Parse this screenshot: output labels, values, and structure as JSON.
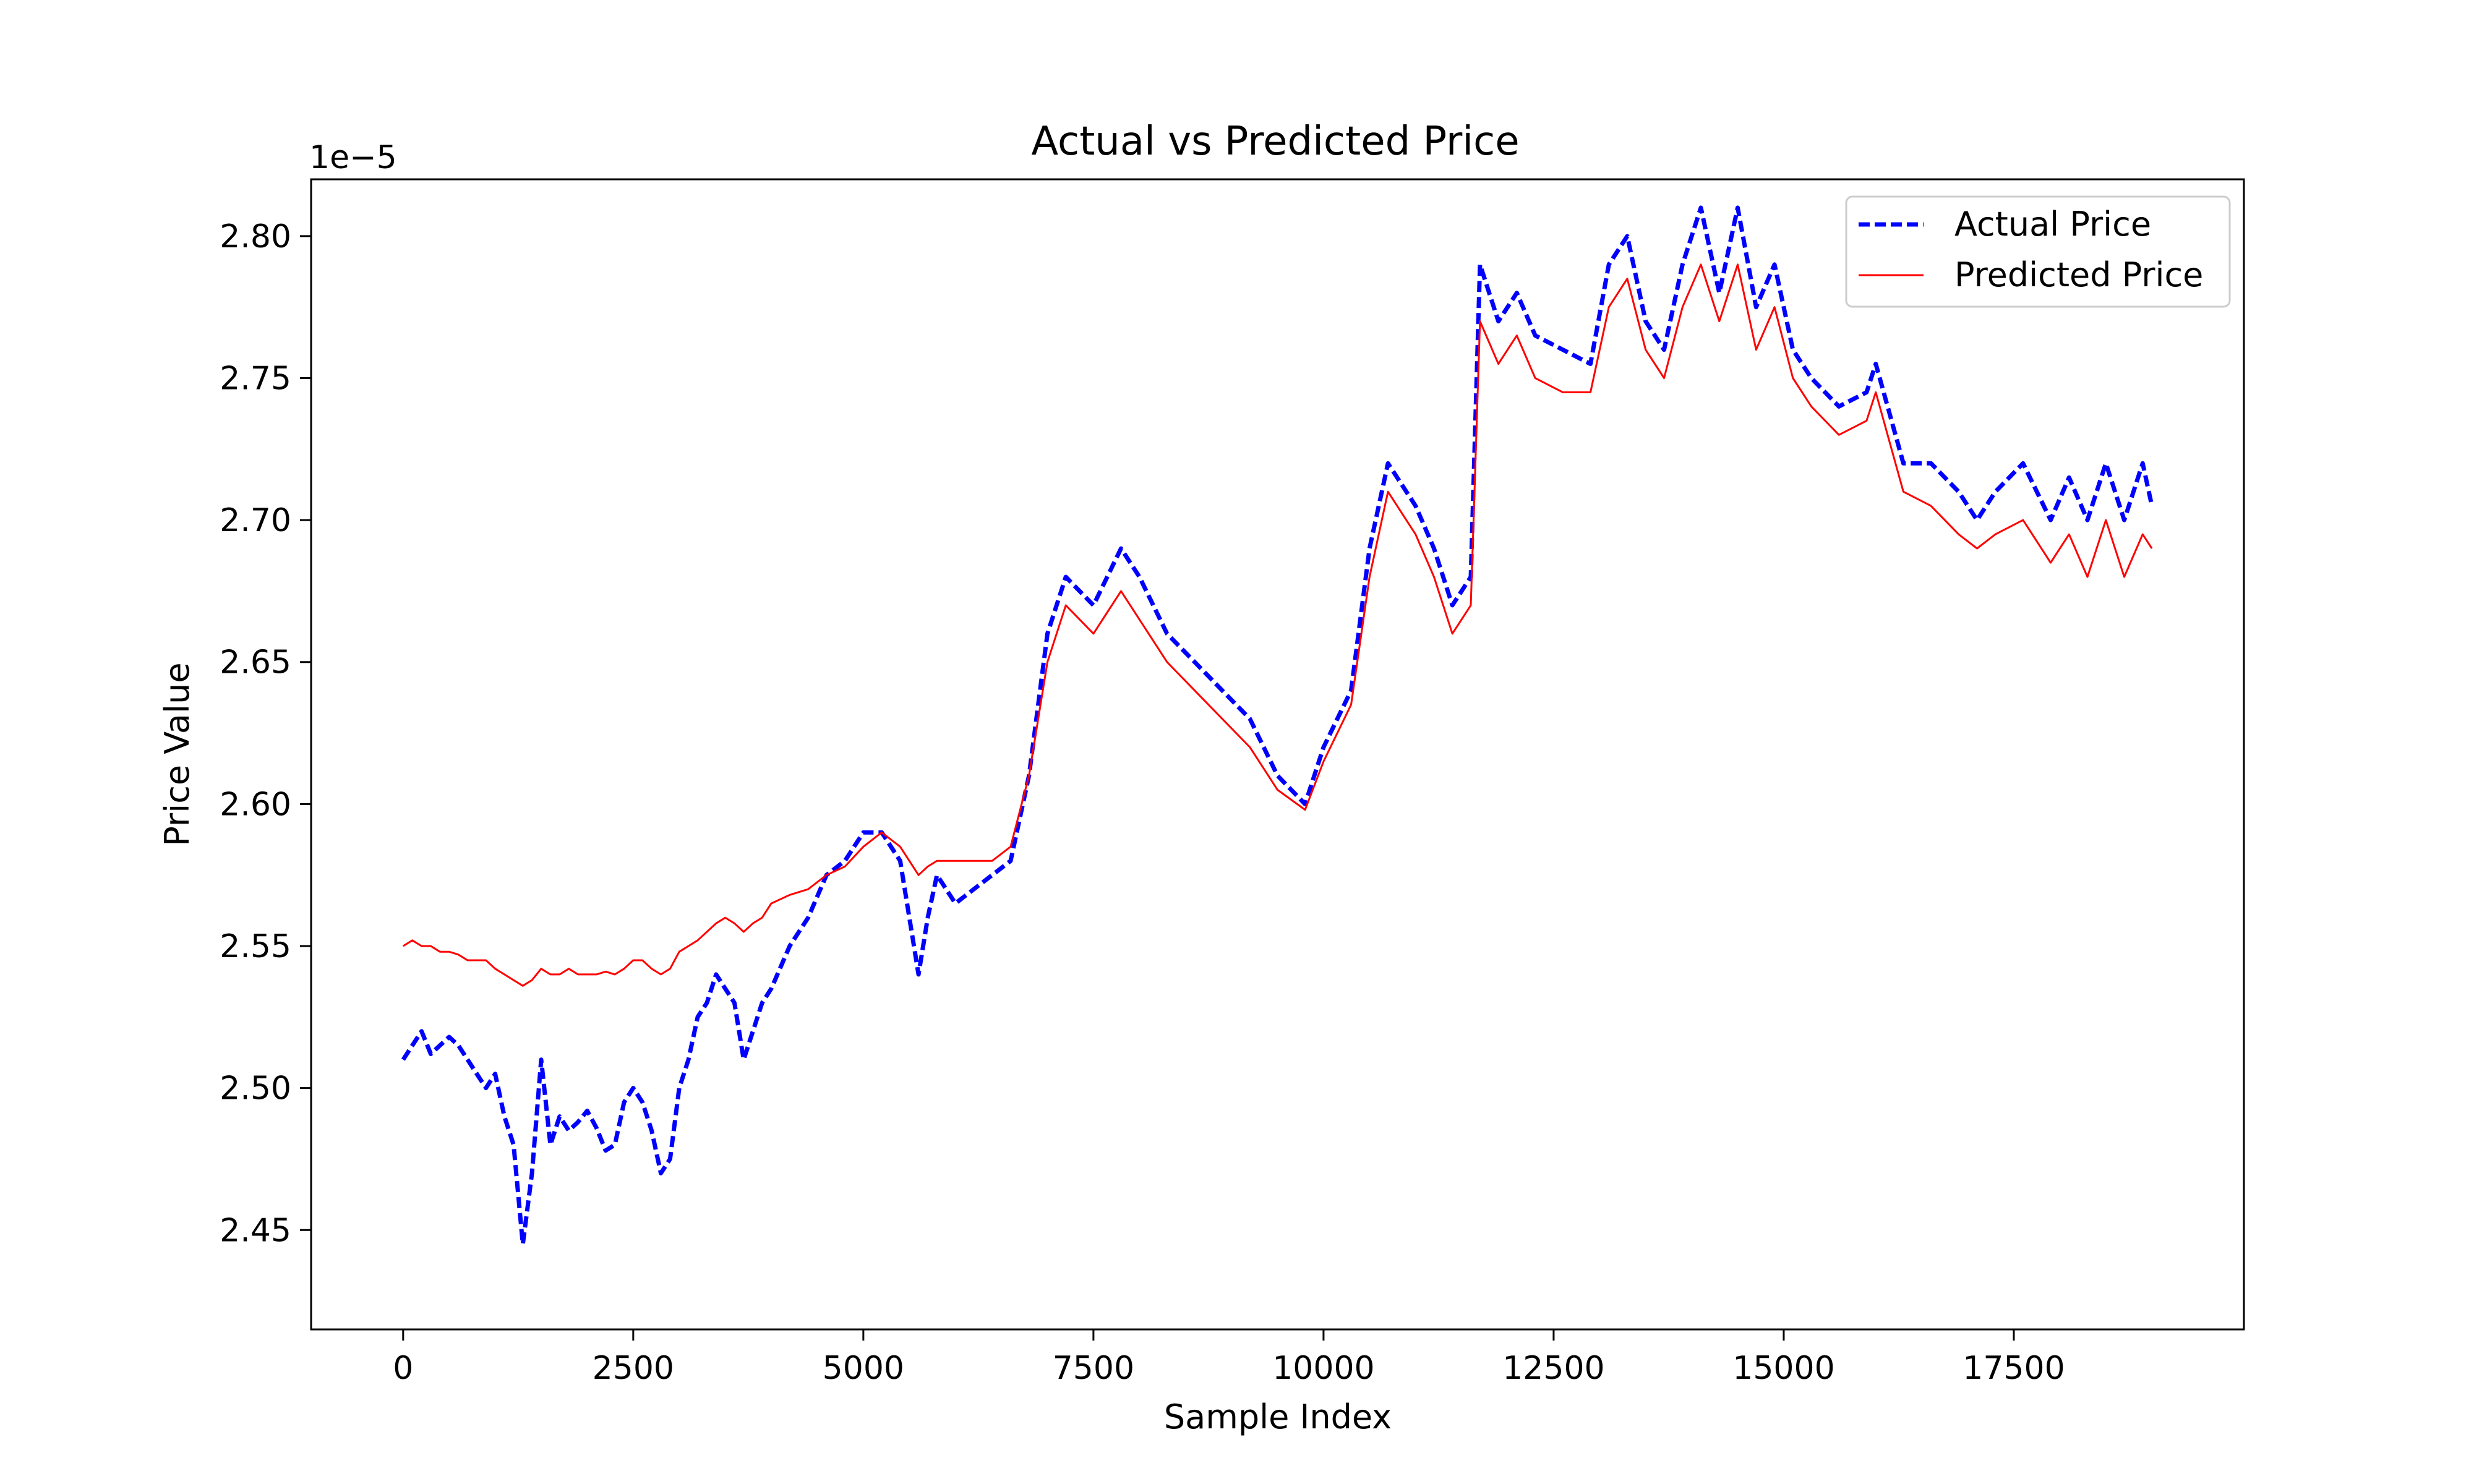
{
  "chart_data": {
    "type": "line",
    "title": "Actual vs Predicted Price",
    "xlabel": "Sample Index",
    "ylabel": "Price Value",
    "y_offset_label": "1e−5",
    "xlim": [
      -1000,
      20000
    ],
    "ylim": [
      2.415,
      2.82
    ],
    "x_ticks": [
      0,
      2500,
      5000,
      7500,
      10000,
      12500,
      15000,
      17500
    ],
    "y_ticks": [
      2.45,
      2.5,
      2.55,
      2.6,
      2.65,
      2.7,
      2.75,
      2.8
    ],
    "y_tick_labels": [
      "2.45",
      "2.50",
      "2.55",
      "2.60",
      "2.65",
      "2.70",
      "2.75",
      "2.80"
    ],
    "grid": false,
    "legend": "top-right",
    "series": [
      {
        "name": "Actual Price",
        "color": "#0000ff",
        "style": "dashed",
        "x": [
          0,
          100,
          200,
          300,
          400,
          500,
          600,
          700,
          800,
          900,
          1000,
          1100,
          1200,
          1300,
          1400,
          1500,
          1600,
          1700,
          1800,
          1900,
          2000,
          2100,
          2200,
          2300,
          2400,
          2500,
          2600,
          2700,
          2800,
          2900,
          3000,
          3100,
          3200,
          3300,
          3400,
          3500,
          3600,
          3700,
          3800,
          3900,
          4000,
          4200,
          4400,
          4600,
          4800,
          5000,
          5200,
          5400,
          5600,
          5700,
          5800,
          6000,
          6200,
          6400,
          6600,
          6800,
          7000,
          7200,
          7500,
          7800,
          8000,
          8300,
          8600,
          8900,
          9200,
          9500,
          9800,
          10000,
          10300,
          10500,
          10700,
          11000,
          11200,
          11400,
          11600,
          11700,
          11900,
          12100,
          12300,
          12600,
          12900,
          13100,
          13300,
          13500,
          13700,
          13900,
          14100,
          14300,
          14500,
          14700,
          14900,
          15100,
          15300,
          15600,
          15900,
          16000,
          16300,
          16600,
          16900,
          17100,
          17300,
          17600,
          17900,
          18100,
          18300,
          18500,
          18700,
          18900,
          19000
        ],
        "values": [
          2.51,
          2.515,
          2.52,
          2.512,
          2.515,
          2.518,
          2.515,
          2.51,
          2.505,
          2.5,
          2.505,
          2.49,
          2.48,
          2.445,
          2.47,
          2.51,
          2.48,
          2.49,
          2.485,
          2.488,
          2.492,
          2.486,
          2.478,
          2.48,
          2.495,
          2.5,
          2.495,
          2.485,
          2.47,
          2.475,
          2.5,
          2.51,
          2.525,
          2.53,
          2.54,
          2.535,
          2.53,
          2.51,
          2.52,
          2.53,
          2.535,
          2.55,
          2.56,
          2.575,
          2.58,
          2.59,
          2.59,
          2.58,
          2.54,
          2.56,
          2.575,
          2.565,
          2.57,
          2.575,
          2.58,
          2.61,
          2.66,
          2.68,
          2.67,
          2.69,
          2.68,
          2.66,
          2.65,
          2.64,
          2.63,
          2.61,
          2.6,
          2.62,
          2.64,
          2.69,
          2.72,
          2.705,
          2.69,
          2.67,
          2.68,
          2.79,
          2.77,
          2.78,
          2.765,
          2.76,
          2.755,
          2.79,
          2.8,
          2.77,
          2.76,
          2.79,
          2.81,
          2.78,
          2.81,
          2.775,
          2.79,
          2.76,
          2.75,
          2.74,
          2.745,
          2.755,
          2.72,
          2.72,
          2.71,
          2.7,
          2.71,
          2.72,
          2.7,
          2.715,
          2.7,
          2.72,
          2.7,
          2.72,
          2.705
        ]
      },
      {
        "name": "Predicted Price",
        "color": "#ff0000",
        "style": "solid",
        "x": [
          0,
          100,
          200,
          300,
          400,
          500,
          600,
          700,
          800,
          900,
          1000,
          1100,
          1200,
          1300,
          1400,
          1500,
          1600,
          1700,
          1800,
          1900,
          2000,
          2100,
          2200,
          2300,
          2400,
          2500,
          2600,
          2700,
          2800,
          2900,
          3000,
          3100,
          3200,
          3300,
          3400,
          3500,
          3600,
          3700,
          3800,
          3900,
          4000,
          4200,
          4400,
          4600,
          4800,
          5000,
          5200,
          5400,
          5600,
          5700,
          5800,
          6000,
          6200,
          6400,
          6600,
          6800,
          7000,
          7200,
          7500,
          7800,
          8000,
          8300,
          8600,
          8900,
          9200,
          9500,
          9800,
          10000,
          10300,
          10500,
          10700,
          11000,
          11200,
          11400,
          11600,
          11700,
          11900,
          12100,
          12300,
          12600,
          12900,
          13100,
          13300,
          13500,
          13700,
          13900,
          14100,
          14300,
          14500,
          14700,
          14900,
          15100,
          15300,
          15600,
          15900,
          16000,
          16300,
          16600,
          16900,
          17100,
          17300,
          17600,
          17900,
          18100,
          18300,
          18500,
          18700,
          18900,
          19000
        ],
        "values": [
          2.55,
          2.552,
          2.55,
          2.55,
          2.548,
          2.548,
          2.547,
          2.545,
          2.545,
          2.545,
          2.542,
          2.54,
          2.538,
          2.536,
          2.538,
          2.542,
          2.54,
          2.54,
          2.542,
          2.54,
          2.54,
          2.54,
          2.541,
          2.54,
          2.542,
          2.545,
          2.545,
          2.542,
          2.54,
          2.542,
          2.548,
          2.55,
          2.552,
          2.555,
          2.558,
          2.56,
          2.558,
          2.555,
          2.558,
          2.56,
          2.565,
          2.568,
          2.57,
          2.575,
          2.578,
          2.585,
          2.59,
          2.585,
          2.575,
          2.578,
          2.58,
          2.58,
          2.58,
          2.58,
          2.585,
          2.61,
          2.65,
          2.67,
          2.66,
          2.675,
          2.665,
          2.65,
          2.64,
          2.63,
          2.62,
          2.605,
          2.598,
          2.615,
          2.635,
          2.68,
          2.71,
          2.695,
          2.68,
          2.66,
          2.67,
          2.77,
          2.755,
          2.765,
          2.75,
          2.745,
          2.745,
          2.775,
          2.785,
          2.76,
          2.75,
          2.775,
          2.79,
          2.77,
          2.79,
          2.76,
          2.775,
          2.75,
          2.74,
          2.73,
          2.735,
          2.745,
          2.71,
          2.705,
          2.695,
          2.69,
          2.695,
          2.7,
          2.685,
          2.695,
          2.68,
          2.7,
          2.68,
          2.695,
          2.69
        ]
      }
    ]
  }
}
